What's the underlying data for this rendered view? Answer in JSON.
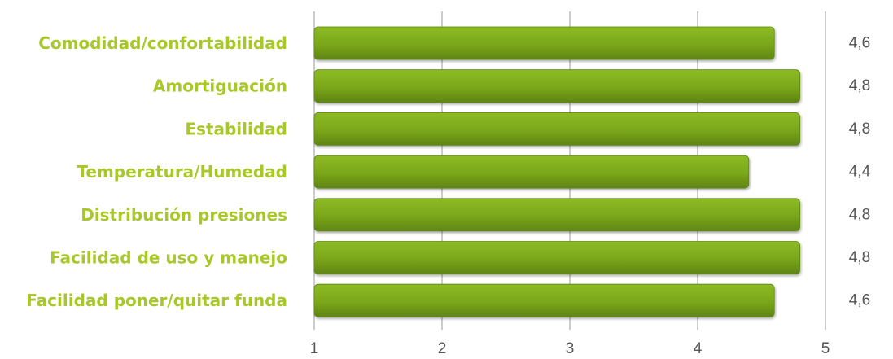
{
  "chart_data": {
    "type": "bar",
    "orientation": "horizontal",
    "categories": [
      "Comodidad/confortabilidad",
      "Amortiguación",
      "Estabilidad",
      "Temperatura/Humedad",
      "Distribución presiones",
      "Facilidad de uso y manejo",
      "Facilidad poner/quitar funda"
    ],
    "values": [
      4.6,
      4.8,
      4.8,
      4.4,
      4.8,
      4.8,
      4.6
    ],
    "value_labels": [
      "4,6",
      "4,8",
      "4,8",
      "4,4",
      "4,8",
      "4,8",
      "4,6"
    ],
    "xlim": [
      1,
      5
    ],
    "xticks": [
      1,
      2,
      3,
      4,
      5
    ],
    "xtick_labels": [
      "1",
      "2",
      "3",
      "4",
      "5"
    ],
    "grid": true,
    "legend": "none",
    "colors": {
      "bar": "#7aa61b",
      "bar_light": "#8cbb24",
      "bar_dark": "#5f8512",
      "label": "#a8c82a",
      "grid": "#999999"
    }
  }
}
